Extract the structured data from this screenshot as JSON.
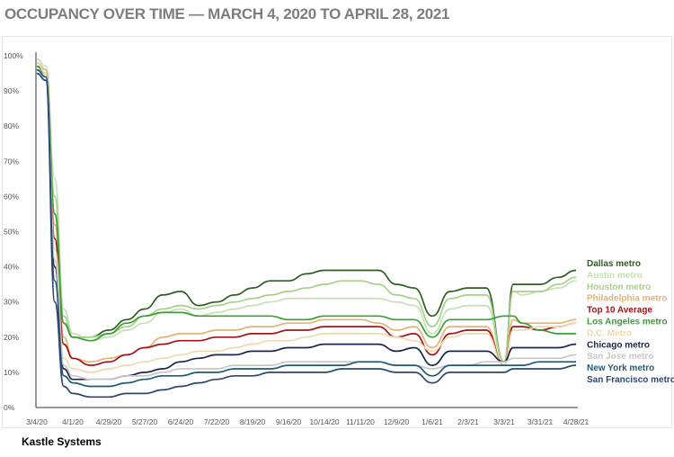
{
  "chart_data": {
    "type": "line",
    "title": "OCCUPANCY OVER TIME — MARCH 4, 2020 TO APRIL 28, 2021",
    "xlabel": "",
    "ylabel": "",
    "ylim": [
      0,
      100
    ],
    "y_ticks": [
      "0%",
      "10%",
      "20%",
      "30%",
      "40%",
      "50%",
      "60%",
      "70%",
      "80%",
      "90%",
      "100%"
    ],
    "x_ticks": [
      "3/4/20",
      "4/1/20",
      "4/29/20",
      "5/27/20",
      "6/24/20",
      "7/22/20",
      "8/19/20",
      "9/16/20",
      "10/14/20",
      "11/11/20",
      "12/9/20",
      "1/6/21",
      "2/3/21",
      "3/3/21",
      "3/31/21",
      "4/28/21"
    ],
    "grid": false,
    "legend_position": "right",
    "x": [
      "3/4/20",
      "3/11/20",
      "3/18/20",
      "3/25/20",
      "4/1/20",
      "4/15/20",
      "4/29/20",
      "5/13/20",
      "5/27/20",
      "6/10/20",
      "6/24/20",
      "7/8/20",
      "7/22/20",
      "8/5/20",
      "8/19/20",
      "9/2/20",
      "9/16/20",
      "9/30/20",
      "10/14/20",
      "10/28/20",
      "11/11/20",
      "11/25/20",
      "12/9/20",
      "12/23/20",
      "1/6/21",
      "1/20/21",
      "2/3/21",
      "2/17/21",
      "3/3/21",
      "3/10/21",
      "3/17/21",
      "3/31/21",
      "4/14/21",
      "4/28/21"
    ],
    "series": [
      {
        "name": "Dallas metro",
        "color": "#2e5e1f",
        "values": [
          97,
          95,
          55,
          24,
          20,
          20,
          22,
          25,
          28,
          32,
          33,
          29,
          30,
          32,
          34,
          36,
          36,
          38,
          39,
          39,
          39,
          39,
          35,
          34,
          26,
          33,
          34,
          34,
          13,
          35,
          35,
          35,
          37,
          39
        ]
      },
      {
        "name": "Austin metro",
        "color": "#c5e0b5",
        "values": [
          99,
          97,
          65,
          28,
          21,
          19,
          20,
          22,
          24,
          27,
          28,
          26,
          27,
          28,
          29,
          30,
          31,
          31,
          31,
          31,
          31,
          31,
          30,
          29,
          21,
          28,
          29,
          29,
          13,
          33,
          32,
          33,
          34,
          36
        ]
      },
      {
        "name": "Houston metro",
        "color": "#a6d189",
        "values": [
          98,
          96,
          60,
          26,
          20,
          20,
          21,
          23,
          26,
          28,
          29,
          28,
          29,
          30,
          31,
          32,
          33,
          34,
          35,
          36,
          36,
          35,
          32,
          31,
          23,
          31,
          32,
          32,
          13,
          33,
          33,
          33,
          35,
          37
        ]
      },
      {
        "name": "Philadelphia metro",
        "color": "#e5b373",
        "values": [
          98,
          96,
          52,
          20,
          14,
          13,
          14,
          15,
          17,
          20,
          21,
          21,
          22,
          22,
          23,
          23,
          24,
          24,
          25,
          25,
          25,
          24,
          22,
          23,
          17,
          23,
          23,
          23,
          12,
          25,
          24,
          24,
          24,
          25
        ]
      },
      {
        "name": "Top 10 Average",
        "color": "#a3151a",
        "values": [
          97,
          95,
          48,
          18,
          14,
          12,
          13,
          15,
          17,
          18,
          19,
          19,
          20,
          20,
          21,
          21,
          22,
          22,
          23,
          23,
          23,
          23,
          20,
          21,
          15,
          21,
          22,
          22,
          12,
          23,
          23,
          22,
          23,
          24
        ]
      },
      {
        "name": "Los Angeles metro",
        "color": "#3a9e35",
        "values": [
          97,
          95,
          55,
          24,
          20,
          19,
          21,
          24,
          26,
          27,
          27,
          26,
          26,
          26,
          26,
          26,
          25,
          25,
          26,
          26,
          26,
          26,
          25,
          25,
          20,
          25,
          25,
          25,
          26,
          26,
          24,
          22,
          21,
          21
        ]
      },
      {
        "name": "D.C. Metro",
        "color": "#efd9b0",
        "values": [
          98,
          95,
          45,
          14,
          11,
          10,
          11,
          12,
          13,
          14,
          15,
          16,
          16,
          17,
          18,
          19,
          19,
          20,
          21,
          21,
          21,
          21,
          20,
          19,
          16,
          20,
          21,
          21,
          12,
          22,
          22,
          23,
          23,
          24
        ]
      },
      {
        "name": "Chicago metro",
        "color": "#1a2748",
        "values": [
          96,
          94,
          40,
          11,
          8,
          8,
          8,
          9,
          10,
          11,
          13,
          14,
          15,
          15,
          16,
          16,
          17,
          17,
          18,
          18,
          18,
          18,
          16,
          17,
          12,
          16,
          16,
          16,
          13,
          17,
          17,
          17,
          17,
          18
        ]
      },
      {
        "name": "San Jose metro",
        "color": "#c7c7c7",
        "values": [
          96,
          94,
          42,
          12,
          9,
          8,
          8,
          9,
          9,
          10,
          11,
          11,
          11,
          12,
          12,
          12,
          13,
          13,
          13,
          13,
          13,
          13,
          12,
          12,
          11,
          12,
          12,
          13,
          13,
          14,
          14,
          14,
          14,
          15
        ]
      },
      {
        "name": "New York metro",
        "color": "#1f5a77",
        "values": [
          96,
          94,
          36,
          9,
          7,
          6,
          6,
          7,
          8,
          9,
          9,
          10,
          10,
          11,
          11,
          11,
          12,
          12,
          12,
          12,
          13,
          13,
          12,
          12,
          9,
          12,
          12,
          12,
          12,
          12,
          12,
          13,
          13,
          13
        ]
      },
      {
        "name": "San Francisco metro",
        "color": "#2c4672",
        "values": [
          95,
          93,
          30,
          6,
          4,
          3,
          3,
          4,
          4,
          5,
          6,
          7,
          8,
          9,
          9,
          10,
          10,
          10,
          10,
          11,
          11,
          11,
          10,
          10,
          7,
          10,
          10,
          10,
          10,
          11,
          11,
          11,
          11,
          12
        ]
      }
    ]
  },
  "source_label": "Kastle Systems"
}
